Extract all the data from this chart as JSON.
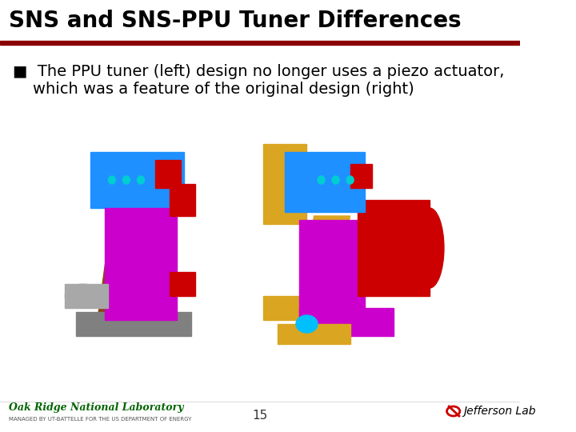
{
  "title": "SNS and SNS-PPU Tuner Differences",
  "title_fontsize": 20,
  "title_bg_color": "#FFFFFF",
  "title_bar_color": "#8B0000",
  "bullet_text_line1": "■  The PPU tuner (left) design no longer uses a piezo actuator,",
  "bullet_text_line2": "    which was a feature of the original design (right)",
  "bullet_fontsize": 14,
  "page_number": "15",
  "footer_left_text": "Oak Ridge National Laboratory",
  "footer_left_subtext": "MANAGED BY UT-BATTELLE FOR THE US DEPARTMENT OF ENERGY",
  "footer_left_color": "#006400",
  "footer_right_text": "Jefferson Lab",
  "bg_color": "#FFFFFF",
  "header_line_color": "#8B0000",
  "header_bg_color": "#FFFFFF"
}
